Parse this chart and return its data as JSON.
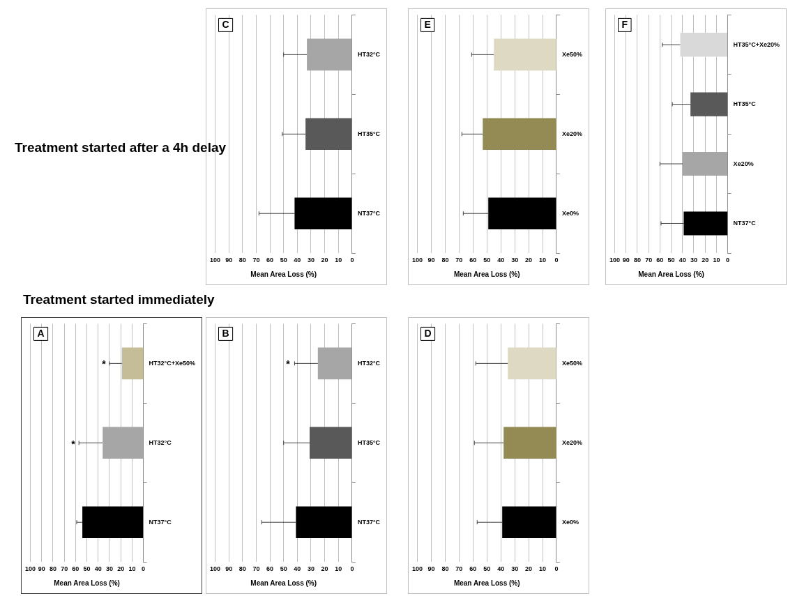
{
  "chart_data": [
    {
      "type": "bar",
      "orientation": "horizontal",
      "title": "A",
      "annotations": [
        "Treatment started immediately",
        "*",
        "*"
      ],
      "categories": [
        "HT32°C+Xe50%",
        "HT32°C",
        "NT37°C"
      ],
      "values": [
        19,
        36,
        54
      ],
      "colors": [
        "#c4bd97",
        "#a6a6a6",
        "#000000"
      ],
      "errors": [
        [
          19,
          30
        ],
        [
          36,
          57
        ],
        [
          54,
          59
        ]
      ],
      "xlabel": "Mean Area Loss (%)",
      "xlim": [
        100,
        0
      ],
      "xticks": [
        100,
        90,
        80,
        70,
        60,
        50,
        40,
        30,
        20,
        10,
        0
      ],
      "grid": "x",
      "legend": false
    },
    {
      "type": "bar",
      "orientation": "horizontal",
      "title": "B",
      "annotations": [
        "*"
      ],
      "categories": [
        "HT32°C",
        "HT35°C",
        "NT37°C"
      ],
      "values": [
        25,
        31,
        41
      ],
      "colors": [
        "#a6a6a6",
        "#595959",
        "#000000"
      ],
      "errors": [
        [
          25,
          42
        ],
        [
          31,
          50
        ],
        [
          41,
          66
        ]
      ],
      "xlabel": "Mean Area Loss (%)",
      "xlim": [
        100,
        0
      ],
      "xticks": [
        100,
        90,
        80,
        70,
        60,
        50,
        40,
        30,
        20,
        10,
        0
      ],
      "grid": "x",
      "legend": false
    },
    {
      "type": "bar",
      "orientation": "horizontal",
      "title": "C",
      "annotations": [
        "Treatment started after a 4h delay"
      ],
      "categories": [
        "HT32°C",
        "HT35°C",
        "NT37°C"
      ],
      "values": [
        33,
        34,
        42
      ],
      "colors": [
        "#a6a6a6",
        "#595959",
        "#000000"
      ],
      "errors": [
        [
          33,
          50
        ],
        [
          34,
          51
        ],
        [
          42,
          68
        ]
      ],
      "xlabel": "Mean Area Loss (%)",
      "xlim": [
        100,
        0
      ],
      "xticks": [
        100,
        90,
        80,
        70,
        60,
        50,
        40,
        30,
        20,
        10,
        0
      ],
      "grid": "x",
      "legend": false
    },
    {
      "type": "bar",
      "orientation": "horizontal",
      "title": "D",
      "categories": [
        "Xe50%",
        "Xe20%",
        "Xe0%"
      ],
      "values": [
        35,
        38,
        39
      ],
      "colors": [
        "#ddd9c3",
        "#948a54",
        "#000000"
      ],
      "errors": [
        [
          35,
          58
        ],
        [
          38,
          59
        ],
        [
          39,
          57
        ]
      ],
      "xlabel": "Mean Area Loss (%)",
      "xlim": [
        100,
        0
      ],
      "xticks": [
        100,
        90,
        80,
        70,
        60,
        50,
        40,
        30,
        20,
        10,
        0
      ],
      "grid": "x",
      "legend": false
    },
    {
      "type": "bar",
      "orientation": "horizontal",
      "title": "E",
      "categories": [
        "Xe50%",
        "Xe20%",
        "Xe0%"
      ],
      "values": [
        45,
        53,
        49
      ],
      "colors": [
        "#ddd9c3",
        "#948a54",
        "#000000"
      ],
      "errors": [
        [
          45,
          61
        ],
        [
          53,
          68
        ],
        [
          49,
          67
        ]
      ],
      "xlabel": "Mean Area Loss (%)",
      "xlim": [
        100,
        0
      ],
      "xticks": [
        100,
        90,
        80,
        70,
        60,
        50,
        40,
        30,
        20,
        10,
        0
      ],
      "grid": "x",
      "legend": false
    },
    {
      "type": "bar",
      "orientation": "horizontal",
      "title": "F",
      "categories": [
        "HT35°C+Xe20%",
        "HT35°C",
        "Xe20%",
        "NT37°C"
      ],
      "values": [
        42,
        33,
        40,
        39
      ],
      "colors": [
        "#d9d9d9",
        "#595959",
        "#a6a6a6",
        "#000000"
      ],
      "errors": [
        [
          42,
          58
        ],
        [
          33,
          49
        ],
        [
          40,
          60
        ],
        [
          39,
          59
        ]
      ],
      "xlabel": "Mean Area Loss (%)",
      "xlim": [
        100,
        0
      ],
      "xticks": [
        100,
        90,
        80,
        70,
        60,
        50,
        40,
        30,
        20,
        10,
        0
      ],
      "grid": "x",
      "legend": false
    }
  ]
}
